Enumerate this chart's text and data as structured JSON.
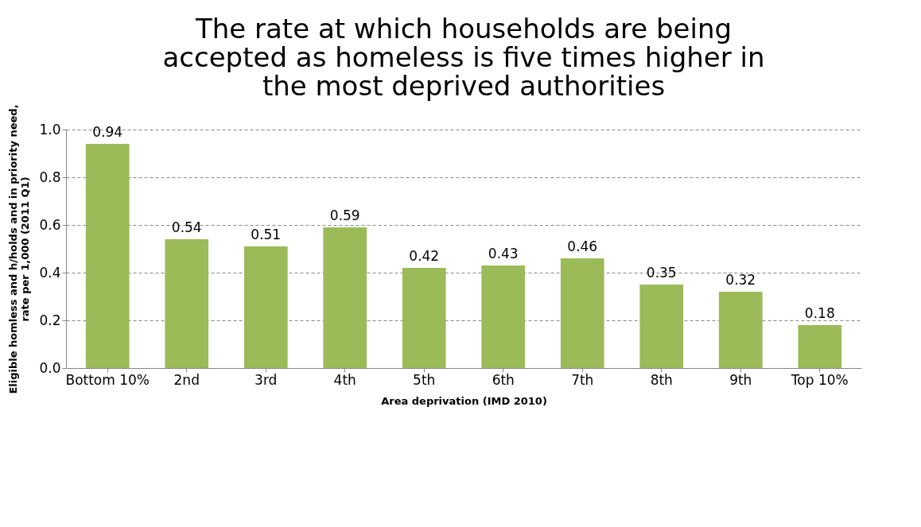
{
  "chart_data": {
    "type": "bar",
    "title": "The rate at which households are being accepted as homeless is five times higher in the most deprived authorities",
    "xlabel": "Area deprivation (IMD 2010)",
    "ylabel": "Eligible homless and h/holds and in priority need, rate per 1,000 (2011 Q1)",
    "categories": [
      "Bottom 10%",
      "2nd",
      "3rd",
      "4th",
      "5th",
      "6th",
      "7th",
      "8th",
      "9th",
      "Top 10%"
    ],
    "values": [
      0.94,
      0.54,
      0.51,
      0.59,
      0.42,
      0.43,
      0.46,
      0.35,
      0.32,
      0.18
    ],
    "color": "#9bbb59",
    "ylim": [
      0,
      1
    ],
    "yticks": [
      {
        "value": 0,
        "label": "0.0"
      },
      0.2,
      0.4,
      0.6,
      0.8,
      {
        "value": 1,
        "label": "1.0"
      }
    ],
    "grid": "y",
    "data_labels": true
  }
}
